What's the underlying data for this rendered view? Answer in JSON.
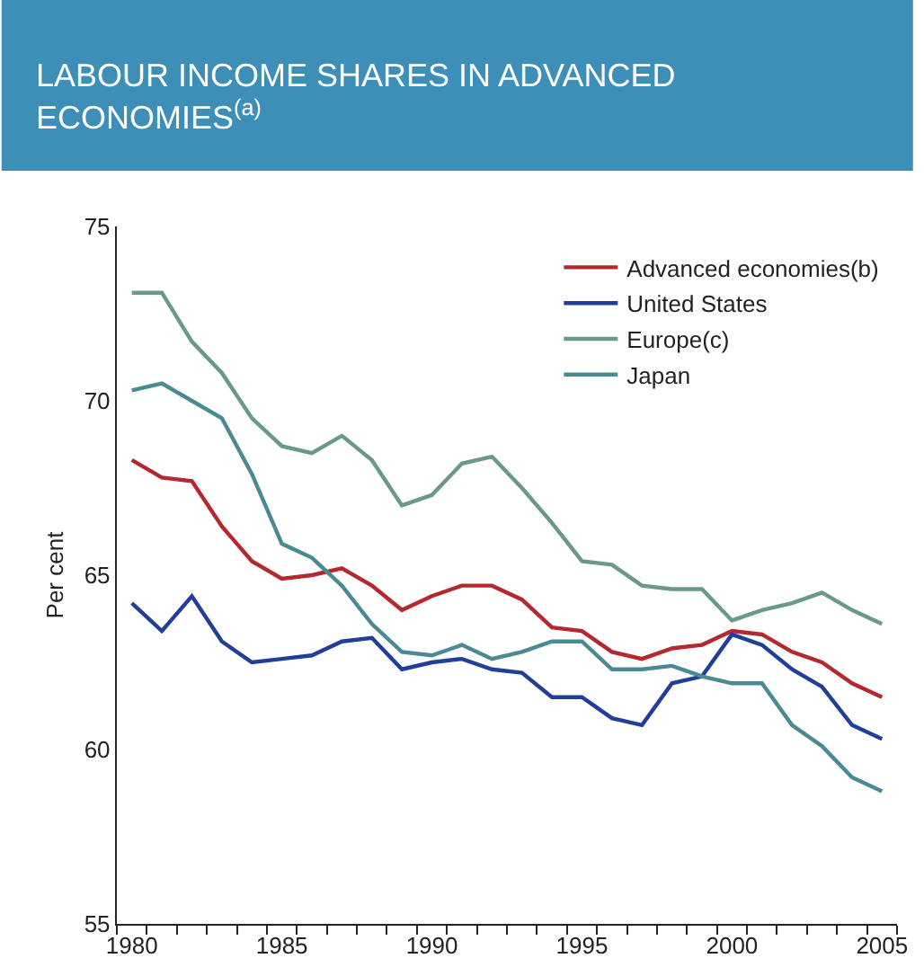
{
  "chart_data": {
    "type": "line",
    "title": "LABOUR INCOME SHARES IN ADVANCED ECONOMIES$^{(a)}$",
    "ylabel": "Per cent",
    "x": [
      1980,
      1981,
      1982,
      1983,
      1984,
      1985,
      1986,
      1987,
      1988,
      1989,
      1990,
      1991,
      1992,
      1993,
      1994,
      1995,
      1996,
      1997,
      1998,
      1999,
      2000,
      2001,
      2002,
      2003,
      2004,
      2005
    ],
    "series": [
      {
        "name": "Advanced economies(b)",
        "color": "#b5282e",
        "values": [
          68.3,
          67.8,
          67.7,
          66.4,
          65.4,
          64.9,
          65.0,
          65.2,
          64.7,
          64.0,
          64.4,
          64.7,
          64.7,
          64.3,
          63.5,
          63.4,
          62.8,
          62.6,
          62.9,
          63.0,
          63.4,
          63.3,
          62.8,
          62.5,
          61.9,
          61.5
        ]
      },
      {
        "name": "United States",
        "color": "#1f3f9a",
        "values": [
          64.2,
          63.4,
          64.4,
          63.1,
          62.5,
          62.6,
          62.7,
          63.1,
          63.2,
          62.3,
          62.5,
          62.6,
          62.3,
          62.2,
          61.5,
          61.5,
          60.9,
          60.7,
          61.9,
          62.1,
          63.3,
          63.0,
          62.3,
          61.8,
          60.7,
          60.3
        ]
      },
      {
        "name": "Europe(c)",
        "color": "#6a9a86",
        "values": [
          73.1,
          73.1,
          71.7,
          70.8,
          69.5,
          68.7,
          68.5,
          69.0,
          68.3,
          67.0,
          67.3,
          68.2,
          68.4,
          67.5,
          66.5,
          65.4,
          65.3,
          64.7,
          64.6,
          64.6,
          63.7,
          64.0,
          64.2,
          64.5,
          64.0,
          63.6
        ]
      },
      {
        "name": "Japan",
        "color": "#4a8a92",
        "values": [
          70.3,
          70.5,
          70.0,
          69.5,
          67.9,
          65.9,
          65.5,
          64.7,
          63.6,
          62.8,
          62.7,
          63.0,
          62.6,
          62.8,
          63.1,
          63.1,
          62.3,
          62.3,
          62.4,
          62.1,
          61.9,
          61.9,
          60.7,
          60.1,
          59.2,
          58.8
        ]
      }
    ],
    "xlim": [
      1979.5,
      2005.5
    ],
    "xticks": [
      1980,
      1985,
      1990,
      1995,
      2000,
      2005,
      {
        "value": 1979.5,
        "label": null
      },
      {
        "value": 1980.5,
        "label": null
      },
      {
        "value": 1981.5,
        "label": null
      },
      {
        "value": 1982.5,
        "label": null
      },
      {
        "value": 1983.5,
        "label": null
      },
      {
        "value": 1984.5,
        "label": null
      },
      {
        "value": 1985.5,
        "label": null
      },
      {
        "value": 1986.5,
        "label": null
      },
      {
        "value": 1987.5,
        "label": null
      },
      {
        "value": 1988.5,
        "label": null
      },
      {
        "value": 1989.5,
        "label": null
      },
      {
        "value": 1990.5,
        "label": null
      },
      {
        "value": 1991.5,
        "label": null
      },
      {
        "value": 1992.5,
        "label": null
      },
      {
        "value": 1993.5,
        "label": null
      },
      {
        "value": 1994.5,
        "label": null
      },
      {
        "value": 1995.5,
        "label": null
      },
      {
        "value": 1996.5,
        "label": null
      },
      {
        "value": 1997.5,
        "label": null
      },
      {
        "value": 1998.5,
        "label": null
      },
      {
        "value": 1999.5,
        "label": null
      },
      {
        "value": 2000.5,
        "label": null
      },
      {
        "value": 2001.5,
        "label": null
      },
      {
        "value": 2002.5,
        "label": null
      },
      {
        "value": 2003.5,
        "label": null
      },
      {
        "value": 2004.5,
        "label": null
      },
      {
        "value": 2005.5,
        "label": null
      }
    ],
    "ylim": [
      55,
      75
    ],
    "yticks": [
      55,
      60,
      65,
      70,
      75
    ],
    "legend": "top right",
    "marker": "none",
    "line_style": "solid"
  }
}
